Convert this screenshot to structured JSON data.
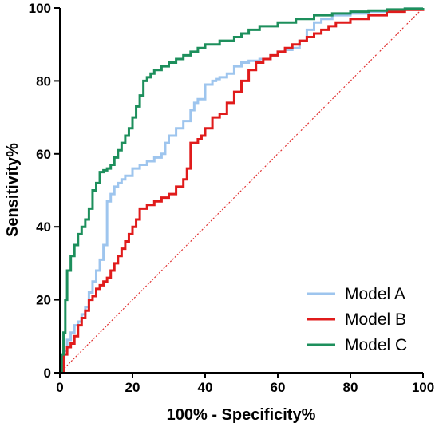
{
  "chart_data": {
    "type": "line",
    "title": "",
    "xlabel": "100% - Specificity%",
    "ylabel": "Sensitivity%",
    "xlim": [
      0,
      100
    ],
    "ylim": [
      0,
      100
    ],
    "x_ticks": [
      "0",
      "20",
      "40",
      "60",
      "80",
      "100"
    ],
    "y_ticks": [
      "0",
      "20",
      "40",
      "60",
      "80",
      "100"
    ],
    "grid": false,
    "legend_position": "bottom-right",
    "reference_line": {
      "x": [
        0,
        100
      ],
      "y": [
        0,
        100
      ],
      "color": "#e03030",
      "style": "dotted"
    },
    "series": [
      {
        "name": "Model A",
        "color": "#9ec5ee",
        "x": [
          0,
          0.5,
          1,
          2,
          3,
          4,
          5,
          6,
          7,
          8,
          9,
          10,
          11,
          12,
          13,
          14,
          15,
          16,
          17,
          18,
          20,
          22,
          24,
          26,
          28,
          29,
          30,
          32,
          34,
          36,
          37,
          38,
          40,
          42,
          43,
          44,
          46,
          48,
          50,
          52,
          55,
          58,
          60,
          62,
          64,
          66,
          68,
          70,
          72,
          75,
          80,
          85,
          90,
          95,
          100
        ],
        "y": [
          0,
          3,
          6,
          9,
          11,
          13,
          14,
          16,
          18,
          22,
          25,
          28,
          31,
          35,
          47,
          49,
          51,
          52,
          53,
          54,
          56,
          57,
          58,
          59,
          60,
          63,
          65,
          67,
          69,
          72,
          74,
          75,
          79,
          80,
          80.5,
          81,
          82,
          84,
          85,
          85.5,
          86,
          87,
          88,
          88.5,
          89,
          91,
          94,
          96,
          97,
          98,
          98.5,
          99,
          99.5,
          99.8,
          100
        ]
      },
      {
        "name": "Model B",
        "color": "#e01b1b",
        "x": [
          0,
          1,
          2,
          3,
          4,
          5,
          6,
          7,
          8,
          9,
          10,
          11,
          12,
          13,
          14,
          15,
          16,
          17,
          18,
          19,
          20,
          21,
          22,
          24,
          26,
          28,
          30,
          32,
          34,
          35,
          36,
          38,
          39,
          40,
          42,
          44,
          46,
          48,
          50,
          52,
          54,
          56,
          58,
          60,
          62,
          64,
          66,
          68,
          70,
          72,
          74,
          76,
          80,
          85,
          90,
          95,
          100
        ],
        "y": [
          0,
          5,
          7,
          8,
          10,
          13,
          15,
          17,
          20,
          21,
          23,
          24,
          25,
          26,
          28,
          30,
          32,
          34,
          36,
          38,
          40,
          42,
          45,
          46,
          47,
          48,
          49,
          51,
          53,
          56,
          63,
          64,
          65,
          67,
          70,
          71,
          74,
          77,
          80,
          83,
          85,
          86,
          87,
          88,
          89,
          90,
          91,
          92,
          93,
          94,
          95,
          96,
          97,
          98,
          99,
          99.5,
          100
        ]
      },
      {
        "name": "Model C",
        "color": "#1d8f5c",
        "x": [
          0,
          0.5,
          1,
          1.5,
          2,
          3,
          4,
          5,
          6,
          7,
          8,
          9,
          10,
          11,
          12,
          13,
          14,
          15,
          16,
          17,
          18,
          19,
          20,
          21,
          22,
          23,
          24,
          25,
          26,
          28,
          30,
          32,
          34,
          36,
          38,
          40,
          44,
          48,
          50,
          52,
          55,
          60,
          65,
          70,
          75,
          80,
          85,
          90,
          95,
          100
        ],
        "y": [
          0,
          5,
          11,
          20,
          28,
          32,
          35,
          38,
          40,
          42,
          45,
          50,
          52,
          55,
          55.5,
          56,
          57,
          59,
          61,
          63,
          65,
          67,
          70,
          73,
          76,
          80,
          81,
          82,
          83,
          84,
          85,
          86,
          87,
          88,
          89,
          90,
          91,
          92,
          93,
          94,
          95,
          96,
          97,
          98,
          98.5,
          99,
          99.3,
          99.6,
          99.8,
          100
        ]
      }
    ]
  }
}
